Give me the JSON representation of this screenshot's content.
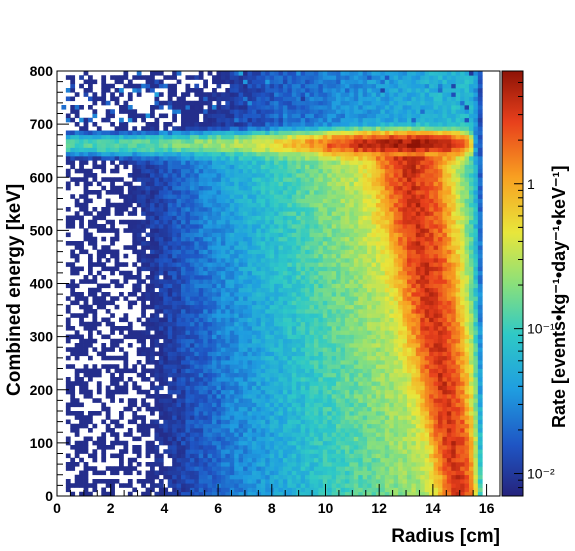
{
  "chart_data": {
    "type": "heatmap",
    "title": "",
    "xlabel": "Radius [cm]",
    "ylabel": "Combined energy [keV]",
    "zlabel": "Rate [events•kg⁻¹•day⁻¹•keV⁻¹]",
    "xlim": [
      0,
      16.5
    ],
    "ylim": [
      0,
      800
    ],
    "zlim": [
      0.007,
      6
    ],
    "z_scale": "log",
    "x_ticks": [
      "0",
      "2",
      "4",
      "6",
      "8",
      "10",
      "12",
      "14",
      "16"
    ],
    "y_ticks": [
      "0",
      "100",
      "200",
      "300",
      "400",
      "500",
      "600",
      "700",
      "800"
    ],
    "z_ticks": [
      "10⁻²",
      "10⁻¹",
      "1"
    ],
    "z_tick_values": [
      0.01,
      0.1,
      1
    ],
    "colormap": [
      "#25237c",
      "#1f55c4",
      "#1f9de0",
      "#2fc9c6",
      "#8be07a",
      "#e8e63b",
      "#f8a021",
      "#e8401c",
      "#8e1306"
    ],
    "features": [
      {
        "description": "horizontal band",
        "energy_keV": 662,
        "radius_range_cm": [
          0.3,
          15.2
        ],
        "peak_rate": 5,
        "peak_at_cm": 13
      },
      {
        "description": "diagonal band",
        "from": {
          "radius_cm": 13.3,
          "energy_keV": 620
        },
        "to": {
          "radius_cm": 15.0,
          "energy_keV": 20
        },
        "peak_rate": 3
      }
    ]
  }
}
